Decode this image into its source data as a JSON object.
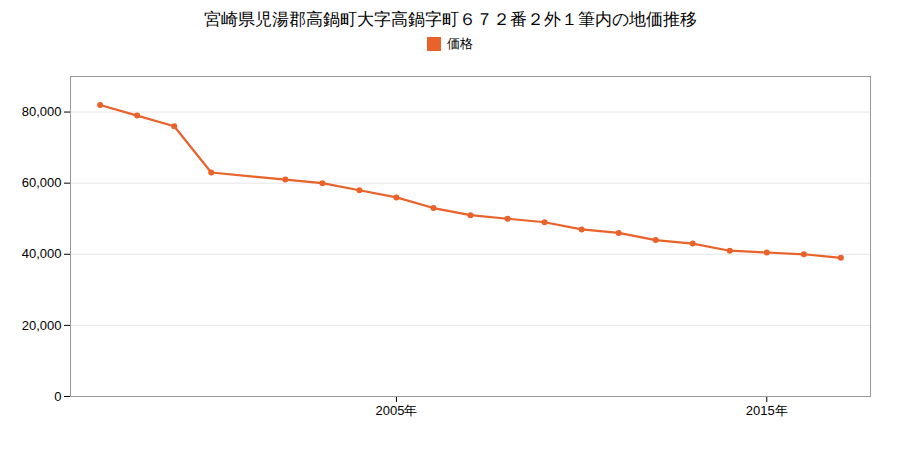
{
  "chart_data": {
    "type": "line",
    "title": "宮崎県児湯郡高鍋町大字高鍋字町６７２番２外１筆内の地価推移",
    "x": [
      1997,
      1998,
      1999,
      2000,
      2002,
      2003,
      2004,
      2005,
      2006,
      2007,
      2008,
      2009,
      2010,
      2011,
      2012,
      2013,
      2014,
      2015,
      2016,
      2017
    ],
    "series": [
      {
        "name": "価格",
        "color": "#e8622a",
        "marker": "circle",
        "values": [
          82000,
          79000,
          76000,
          63000,
          61000,
          60000,
          58000,
          56000,
          53000,
          51000,
          50000,
          49000,
          47000,
          46000,
          44000,
          43000,
          41000,
          40500,
          40000,
          39000
        ]
      }
    ],
    "xlim": [
      1996.2,
      2017.8
    ],
    "xticks": [
      {
        "value": 2005,
        "label": "2005年"
      },
      {
        "value": 2015,
        "label": "2015年"
      }
    ],
    "ylim": [
      0,
      90000
    ],
    "yticks": [
      0,
      {
        "value": 20000,
        "label": "20,000"
      },
      {
        "value": 40000,
        "label": "40,000"
      },
      {
        "value": 60000,
        "label": "60,000"
      },
      {
        "value": 80000,
        "label": "80,000"
      }
    ],
    "grid": true,
    "legend": "top"
  }
}
